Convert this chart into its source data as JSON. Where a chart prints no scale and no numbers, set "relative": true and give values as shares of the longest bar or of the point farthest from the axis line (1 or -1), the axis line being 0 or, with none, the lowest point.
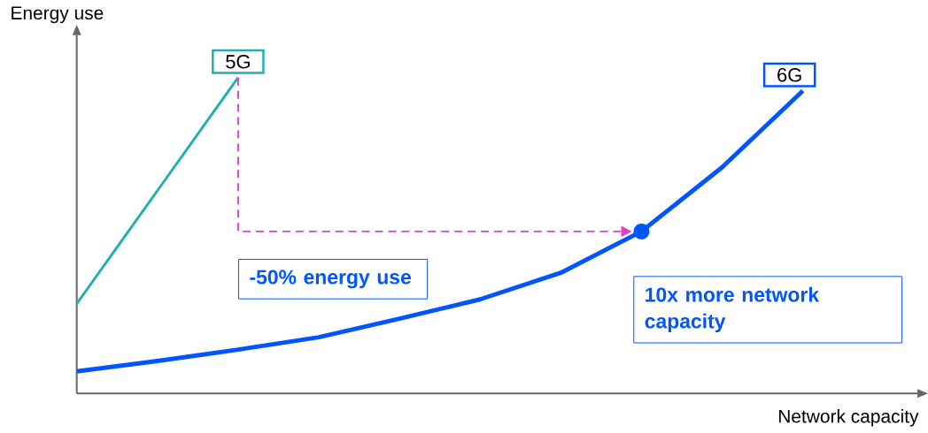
{
  "chart_data": {
    "type": "line",
    "relative": true,
    "xlabel": "Network capacity",
    "ylabel": "Energy use",
    "categories": [
      null,
      null,
      null,
      null,
      null,
      null,
      null,
      null,
      null,
      null
    ],
    "series": [
      {
        "name": "5G",
        "color": "#20b0b0",
        "values": [
          0.284,
          0.642,
          1,
          null,
          null,
          null,
          null,
          null,
          null,
          null
        ]
      },
      {
        "name": "6G",
        "color": "#0055ff",
        "values": [
          0.07,
          0.103,
          0.139,
          0.178,
          0.237,
          0.298,
          0.382,
          0.513,
          0.716,
          0.958
        ]
      }
    ],
    "annotations": [
      "-50% energy use",
      "10x more network capacity"
    ]
  }
}
